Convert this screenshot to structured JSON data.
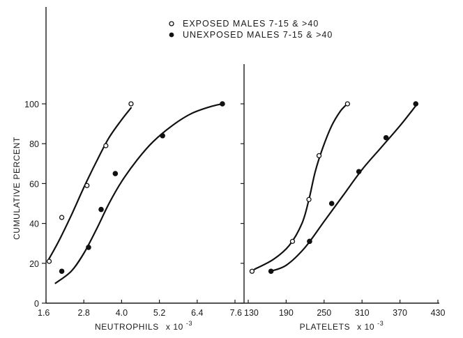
{
  "chart_data": [
    {
      "type": "line",
      "panel": "left",
      "ylabel": "CUMULATIVE PERCENT",
      "xlabel_main": "NEUTROPHILS",
      "xlabel_suffix": "x 10",
      "xlabel_exp": "-3",
      "xlim": [
        1.6,
        7.6
      ],
      "ylim": [
        0,
        100
      ],
      "x_ticks": [
        1.6,
        2.8,
        4.0,
        5.2,
        6.4,
        7.6
      ],
      "x_tick_labels": [
        "1.6",
        "2.8",
        "4.0",
        "5.2",
        "6.4",
        "7.6"
      ],
      "y_ticks": [
        0,
        20,
        40,
        60,
        80,
        100
      ],
      "y_tick_labels": [
        "0",
        "20",
        "40",
        "60",
        "80",
        "100"
      ],
      "series": [
        {
          "name": "EXPOSED MALES 7-15 & >40",
          "marker": "open-circle",
          "points": [
            [
              1.7,
              21
            ],
            [
              2.1,
              43
            ],
            [
              2.9,
              59
            ],
            [
              3.5,
              79
            ],
            [
              4.3,
              100
            ]
          ],
          "fit": [
            [
              1.65,
              21
            ],
            [
              2.0,
              31
            ],
            [
              2.4,
              44
            ],
            [
              2.8,
              58
            ],
            [
              3.2,
              71
            ],
            [
              3.6,
              83
            ],
            [
              4.0,
              92
            ],
            [
              4.3,
              98
            ]
          ]
        },
        {
          "name": "UNEXPOSED MALES 7-15 & >40",
          "marker": "filled-circle",
          "points": [
            [
              2.1,
              16
            ],
            [
              2.95,
              28
            ],
            [
              3.35,
              47
            ],
            [
              3.8,
              65
            ],
            [
              5.3,
              84
            ],
            [
              7.2,
              100
            ]
          ],
          "fit": [
            [
              1.9,
              10
            ],
            [
              2.4,
              16
            ],
            [
              2.8,
              25
            ],
            [
              3.2,
              37
            ],
            [
              3.6,
              50
            ],
            [
              4.0,
              61
            ],
            [
              4.5,
              72
            ],
            [
              5.0,
              81
            ],
            [
              5.6,
              89
            ],
            [
              6.2,
              95
            ],
            [
              6.8,
              98.5
            ],
            [
              7.2,
              100
            ]
          ]
        }
      ]
    },
    {
      "type": "line",
      "panel": "right",
      "xlabel_main": "PLATELETS",
      "xlabel_suffix": "x 10",
      "xlabel_exp": "-3",
      "xlim": [
        130,
        430
      ],
      "ylim": [
        0,
        100
      ],
      "x_ticks": [
        130,
        190,
        250,
        310,
        370,
        430
      ],
      "x_tick_labels": [
        "130",
        "190",
        "250",
        "310",
        "370",
        "430"
      ],
      "series": [
        {
          "name": "EXPOSED MALES 7-15 & >40",
          "marker": "open-circle",
          "points": [
            [
              136,
              16
            ],
            [
              200,
              31
            ],
            [
              226,
              52
            ],
            [
              242,
              74
            ],
            [
              287,
              100
            ]
          ],
          "fit": [
            [
              140,
              17
            ],
            [
              170,
              22
            ],
            [
              195,
              29
            ],
            [
              215,
              40
            ],
            [
              226,
              52
            ],
            [
              236,
              66
            ],
            [
              248,
              78
            ],
            [
              262,
              89
            ],
            [
              275,
              96
            ],
            [
              285,
              99.5
            ]
          ]
        },
        {
          "name": "UNEXPOSED MALES 7-15 & >40",
          "marker": "filled-circle",
          "points": [
            [
              166,
              16
            ],
            [
              227,
              31
            ],
            [
              262,
              50
            ],
            [
              305,
              66
            ],
            [
              348,
              83
            ],
            [
              395,
              100
            ]
          ],
          "fit": [
            [
              165,
              16
            ],
            [
              190,
              19
            ],
            [
              220,
              28
            ],
            [
              250,
              41
            ],
            [
              280,
              54
            ],
            [
              310,
              67
            ],
            [
              340,
              78
            ],
            [
              370,
              89
            ],
            [
              395,
              99
            ]
          ]
        }
      ]
    }
  ],
  "legend": {
    "entries": [
      {
        "label": "EXPOSED MALES 7-15 & >40",
        "marker": "open-circle"
      },
      {
        "label": "UNEXPOSED MALES 7-15 & >40",
        "marker": "filled-circle"
      }
    ]
  },
  "colors": {
    "ink": "#1a1a1a",
    "background": "#ffffff"
  }
}
